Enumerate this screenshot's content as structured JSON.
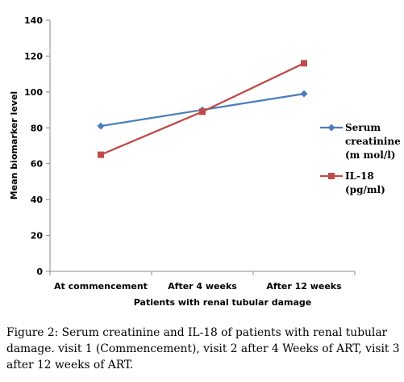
{
  "chart_data": {
    "type": "line",
    "categories": [
      "At commencement",
      "After 4 weeks",
      "After 12 weeks"
    ],
    "series": [
      {
        "name": [
          "Serum",
          "creatinine",
          "(m mol/l)"
        ],
        "values": [
          81,
          90,
          99
        ],
        "color": "#4a7ebb",
        "marker": "diamond"
      },
      {
        "name": [
          "IL-18",
          "(pg/ml)"
        ],
        "values": [
          65,
          89,
          116
        ],
        "color": "#be4b48",
        "marker": "square"
      }
    ],
    "xlabel": "Patients with renal tubular damage",
    "ylabel": "Mean biomarker level",
    "ylim": [
      0,
      140
    ],
    "yticks": [
      0,
      20,
      40,
      60,
      80,
      100,
      120,
      140
    ],
    "grid": false,
    "legend": "right"
  },
  "caption": {
    "label": "Figure 2:",
    "text": " Serum creatinine and IL-18 of patients with renal tubular damage. visit 1 (Commencement), visit 2 after 4 Weeks of ART, visit 3 after 12 weeks of ART."
  }
}
